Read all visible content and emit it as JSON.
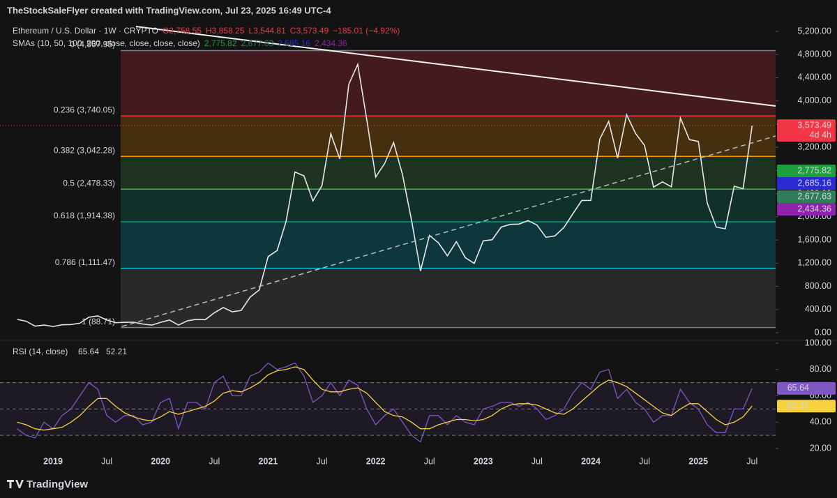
{
  "header": {
    "credit": "TheStockSaleFlyer created with TradingView.com, Jul 23, 2025 16:49 UTC-4",
    "brand": "TradingView"
  },
  "legend": {
    "symbol": "Ethereum / U.S. Dollar · 1W · CRYPTO",
    "open": "O3,758.55",
    "high": "H3,858.25",
    "low": "L3,544.81",
    "close": "C3,573.49",
    "change": "−185.01 (−4.92%)",
    "sma_title": "SMAs (10, 50, 100, 200, close, close, close, close)",
    "sma_values": [
      {
        "text": "2,775.82",
        "color": "#1e9e3c"
      },
      {
        "text": "2,677.63",
        "color": "#2f7d5b"
      },
      {
        "text": "2,685.16",
        "color": "#2b2bd6"
      },
      {
        "text": "2,434.36",
        "color": "#8e24aa"
      }
    ]
  },
  "chart_data": [
    {
      "type": "line",
      "name": "price",
      "color": "#e8e8e8",
      "categories": [
        null,
        null,
        null,
        null,
        "2019",
        null,
        null,
        null,
        null,
        null,
        "Jul",
        null,
        null,
        null,
        null,
        null,
        "2020",
        null,
        null,
        null,
        null,
        null,
        "Jul",
        null,
        null,
        null,
        null,
        null,
        "2021",
        null,
        null,
        null,
        null,
        null,
        "Jul",
        null,
        null,
        null,
        null,
        null,
        "2022",
        null,
        null,
        null,
        null,
        null,
        "Jul",
        null,
        null,
        null,
        null,
        null,
        "2023",
        null,
        null,
        null,
        null,
        null,
        "Jul",
        null,
        null,
        null,
        null,
        null,
        "2024",
        null,
        null,
        null,
        null,
        null,
        "Jul",
        null,
        null,
        null,
        null,
        null,
        "2025",
        null,
        null,
        null,
        null,
        null,
        "Jul"
      ],
      "values": [
        230,
        198,
        113,
        133,
        107,
        136,
        141,
        164,
        268,
        291,
        218,
        172,
        180,
        182,
        151,
        130,
        180,
        218,
        133,
        206,
        231,
        225,
        345,
        435,
        360,
        386,
        615,
        737,
        1314,
        1418,
        1918,
        2773,
        2707,
        2275,
        2536,
        3433,
        3000,
        4288,
        4630,
        3680,
        2687,
        2920,
        3282,
        2726,
        1942,
        1067,
        1679,
        1553,
        1327,
        1572,
        1295,
        1196,
        1585,
        1605,
        1822,
        1870,
        1874,
        1934,
        1857,
        1645,
        1671,
        1815,
        2052,
        2282,
        2283,
        3340,
        3647,
        3014,
        3762,
        3436,
        3232,
        2513,
        2603,
        2518,
        3705,
        3332,
        3300,
        2237,
        1822,
        1794,
        2528,
        2486,
        3573.49
      ],
      "last_label": "3,573.49",
      "countdown": "4d 4h",
      "ylim": [
        -120,
        5320
      ],
      "yticks": [
        {
          "value": 0,
          "label": "0.00"
        },
        {
          "value": 400,
          "label": "400.00"
        },
        {
          "value": 800,
          "label": "800.00"
        },
        {
          "value": 1200,
          "label": "1,200.00"
        },
        {
          "value": 1600,
          "label": "1,600.00"
        },
        {
          "value": 2000,
          "label": "2,000.00"
        },
        {
          "value": 2400,
          "label": "2,400.00"
        },
        {
          "value": 2800,
          "label": "2,800.00"
        },
        {
          "value": 3200,
          "label": "3,200.00"
        },
        {
          "value": 3600,
          "label": "3,600.00"
        },
        {
          "value": 4000,
          "label": "4,000.00"
        },
        {
          "value": 4400,
          "label": "4,400.00"
        },
        {
          "value": 4800,
          "label": "4,800.00"
        },
        {
          "value": 5200,
          "label": "5,200.00"
        }
      ],
      "fib_levels": [
        {
          "value": 4867.95,
          "label": "0 (4,867.95)",
          "color": "#787b86"
        },
        {
          "value": 3740.05,
          "label": "0.236 (3,740.05)",
          "color": "#f23645"
        },
        {
          "value": 3042.28,
          "label": "0.382 (3,042.28)",
          "color": "#ff9800"
        },
        {
          "value": 2478.33,
          "label": "0.5 (2,478.33)",
          "color": "#4caf50"
        },
        {
          "value": 1914.38,
          "label": "0.618 (1,914.38)",
          "color": "#089981"
        },
        {
          "value": 1111.47,
          "label": "0.786 (1,111.47)",
          "color": "#00bcd4"
        },
        {
          "value": 88.71,
          "label": "1 (88.71)",
          "color": "#787b86"
        }
      ]
    },
    {
      "type": "line",
      "name": "rsi",
      "title": "RSI (14, close)",
      "series": [
        {
          "name": "RSI",
          "color": "#7e57c2",
          "last_label": "65.64",
          "values": [
            35,
            30,
            28,
            40,
            35,
            45,
            50,
            60,
            70,
            65,
            45,
            40,
            45,
            45,
            38,
            40,
            55,
            58,
            35,
            55,
            55,
            50,
            70,
            75,
            60,
            60,
            75,
            78,
            85,
            80,
            82,
            85,
            75,
            55,
            60,
            70,
            60,
            72,
            68,
            50,
            38,
            45,
            50,
            40,
            30,
            25,
            45,
            45,
            38,
            45,
            40,
            38,
            50,
            52,
            55,
            55,
            52,
            55,
            50,
            42,
            45,
            50,
            62,
            70,
            65,
            78,
            80,
            58,
            65,
            55,
            50,
            40,
            45,
            45,
            65,
            55,
            50,
            38,
            32,
            32,
            50,
            50,
            65.64
          ]
        },
        {
          "name": "RSI MA",
          "color": "#f7d23e",
          "last_label": "52.21",
          "values": [
            40,
            38,
            35,
            34,
            35,
            36,
            40,
            45,
            52,
            58,
            58,
            52,
            47,
            44,
            42,
            41,
            44,
            48,
            46,
            48,
            50,
            52,
            56,
            62,
            64,
            63,
            66,
            70,
            76,
            79,
            80,
            82,
            80,
            72,
            65,
            63,
            63,
            65,
            66,
            62,
            55,
            48,
            45,
            44,
            40,
            35,
            35,
            38,
            40,
            42,
            42,
            41,
            42,
            45,
            50,
            53,
            54,
            54,
            53,
            50,
            47,
            46,
            50,
            56,
            62,
            68,
            72,
            70,
            67,
            62,
            57,
            52,
            47,
            45,
            50,
            54,
            54,
            48,
            42,
            38,
            40,
            44,
            52.21
          ]
        }
      ],
      "ylim": [
        20,
        100
      ],
      "yticks": [
        {
          "value": 20,
          "label": "20.00"
        },
        {
          "value": 40,
          "label": "40.00"
        },
        {
          "value": 60,
          "label": "60.00"
        },
        {
          "value": 80,
          "label": "80.00"
        },
        {
          "value": 100,
          "label": "100.00"
        }
      ],
      "levels": [
        70,
        50,
        30
      ]
    }
  ]
}
